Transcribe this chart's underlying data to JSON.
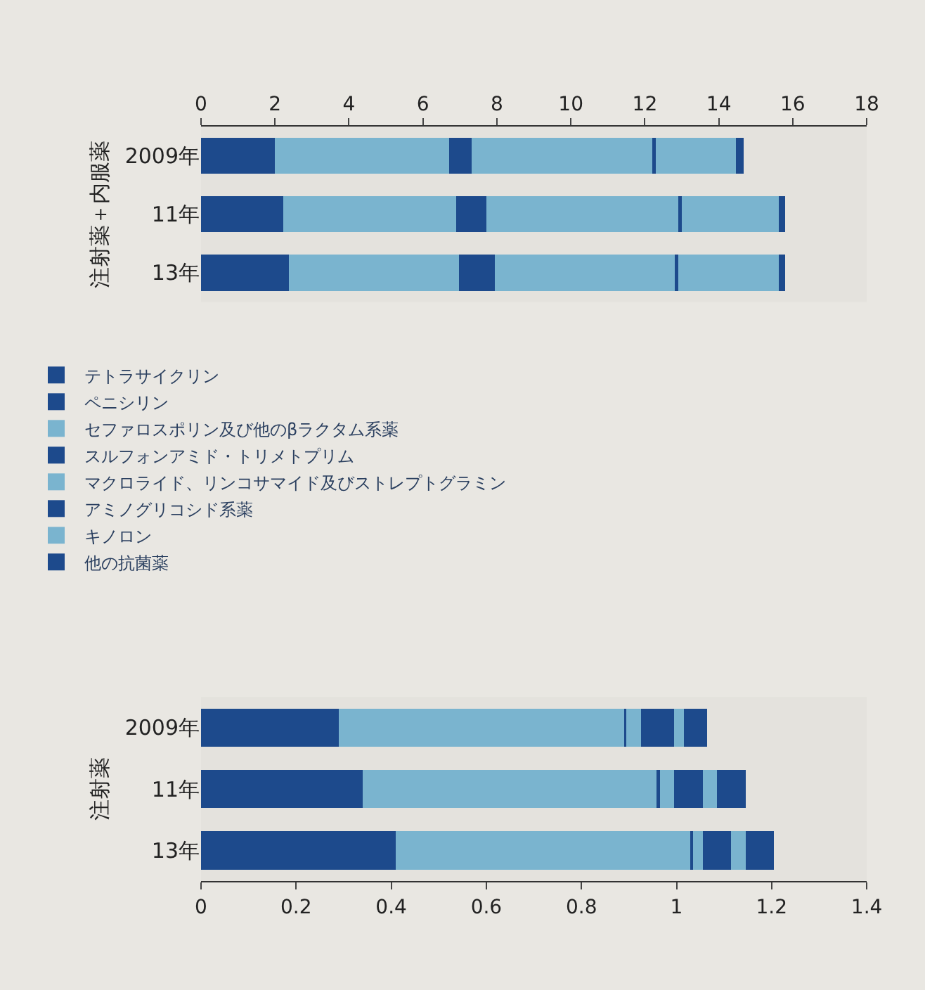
{
  "chart_data": [
    {
      "type": "bar",
      "orientation": "horizontal",
      "stacked": true,
      "ylabel": "注射薬＋内服薬",
      "categories": [
        "2009年",
        "11年",
        "13年"
      ],
      "xlim": [
        0,
        18
      ],
      "xticks": [
        0,
        2,
        4,
        6,
        8,
        10,
        12,
        14,
        16,
        18
      ],
      "legend": "bottom",
      "series": [
        {
          "name": "テトラサイクリン",
          "color": "#1d4a8c",
          "values": [
            0.64,
            0.76,
            0.8
          ]
        },
        {
          "name": "ペニシリン",
          "color": "#1d4a8c",
          "values": [
            1.35,
            1.47,
            1.57
          ]
        },
        {
          "name": "セファロスポリン及び他のβラクタム系薬",
          "color": "#7ab4cf",
          "values": [
            4.71,
            4.66,
            4.6
          ]
        },
        {
          "name": "スルフォンアミド・トリメトプリム",
          "color": "#1d4a8c",
          "values": [
            0.62,
            0.82,
            0.97
          ]
        },
        {
          "name": "マクロライド、リンコサマイド及びストレプトグラミン",
          "color": "#7ab4cf",
          "values": [
            4.89,
            5.19,
            4.86
          ]
        },
        {
          "name": "アミノグリコシド系薬",
          "color": "#1d4a8c",
          "values": [
            0.09,
            0.09,
            0.1
          ]
        },
        {
          "name": "キノロン",
          "color": "#7ab4cf",
          "values": [
            2.17,
            2.63,
            2.72
          ]
        },
        {
          "name": "他の抗菌薬",
          "color": "#1d4a8c",
          "values": [
            0.2,
            0.18,
            0.18
          ]
        }
      ]
    },
    {
      "type": "bar",
      "orientation": "horizontal",
      "stacked": true,
      "ylabel": "注射薬",
      "categories": [
        "2009年",
        "11年",
        "13年"
      ],
      "xlim": [
        0,
        1.4
      ],
      "xticks": [
        0,
        0.2,
        0.4,
        0.6,
        0.8,
        1,
        1.2,
        1.4
      ],
      "series": [
        {
          "color": "#1d4a8c",
          "values": [
            null,
            null,
            null
          ]
        },
        {
          "color": "#1d4a8c",
          "values": [
            0.29,
            0.34,
            0.41
          ]
        },
        {
          "color": "#7ab4cf",
          "values": [
            0.6,
            0.62,
            0.62
          ]
        },
        {
          "color": "#1d4a8c",
          "values": [
            0.005,
            0.005,
            0.005
          ]
        },
        {
          "color": "#7ab4cf",
          "values": [
            0.03,
            0.03,
            0.02
          ]
        },
        {
          "color": "#1d4a8c",
          "values": [
            0.07,
            0.06,
            0.06
          ]
        },
        {
          "color": "#7ab4cf",
          "values": [
            0.02,
            0.03,
            0.03
          ]
        },
        {
          "color": "#1d4a8c",
          "values": [
            0.05,
            0.06,
            0.06
          ]
        }
      ]
    }
  ]
}
